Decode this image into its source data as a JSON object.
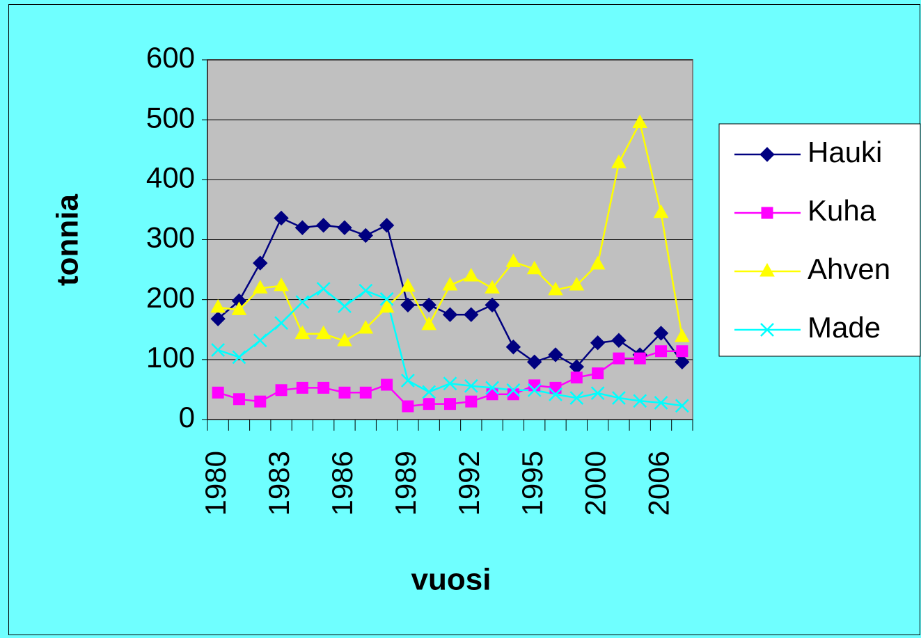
{
  "chart_data": {
    "type": "line",
    "x_label": "vuosi",
    "y_label": "tonnia",
    "categories": [
      "1980",
      null,
      null,
      "1983",
      null,
      null,
      "1986",
      null,
      null,
      "1989",
      null,
      null,
      "1992",
      null,
      null,
      "1995",
      null,
      null,
      "2000",
      null,
      null,
      "2006",
      null
    ],
    "series": [
      {
        "name": "Hauki",
        "color": "#000080",
        "marker": "diamond",
        "values": [
          168,
          198,
          261,
          336,
          320,
          324,
          320,
          307,
          324,
          191,
          191,
          175,
          175,
          191,
          121,
          96,
          108,
          88,
          128,
          132,
          108,
          144,
          96
        ]
      },
      {
        "name": "Kuha",
        "color": "#ff00ff",
        "marker": "square",
        "values": [
          45,
          34,
          30,
          49,
          53,
          53,
          45,
          45,
          58,
          22,
          26,
          26,
          30,
          42,
          42,
          57,
          53,
          70,
          77,
          102,
          102,
          114,
          114
        ]
      },
      {
        "name": "Ahven",
        "color": "#ffff00",
        "marker": "triangle",
        "values": [
          187,
          183,
          219,
          223,
          143,
          143,
          131,
          152,
          187,
          222,
          158,
          224,
          239,
          219,
          263,
          251,
          216,
          224,
          259,
          428,
          495,
          345,
          138
        ]
      },
      {
        "name": "Made",
        "color": "#00ffff",
        "marker": "x",
        "values": [
          116,
          104,
          132,
          161,
          196,
          218,
          189,
          215,
          201,
          65,
          46,
          60,
          56,
          53,
          49,
          49,
          42,
          36,
          44,
          36,
          31,
          28,
          23
        ]
      }
    ],
    "ylim": [
      0,
      600
    ],
    "yticks": [
      0,
      100,
      200,
      300,
      400,
      500,
      600
    ],
    "grid": true,
    "legend": "right"
  }
}
